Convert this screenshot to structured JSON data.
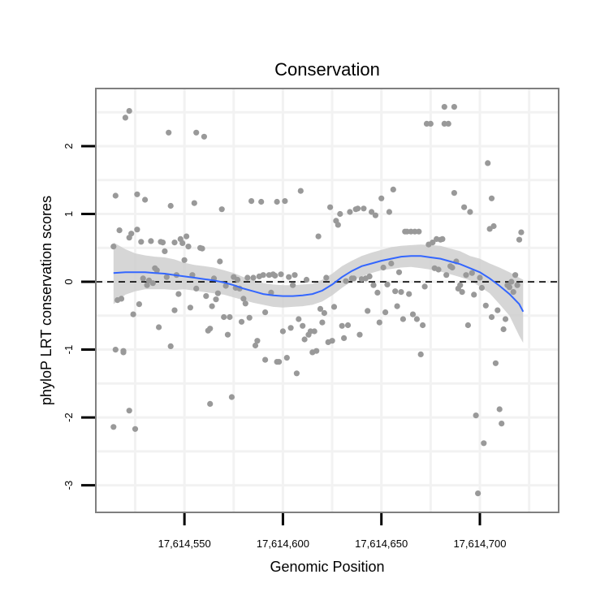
{
  "chart_data": {
    "type": "scatter",
    "title": "Conservation",
    "xlabel": "Genomic Position",
    "ylabel": "phyloP LRT conservation scores",
    "xlim": [
      17614505,
      17614740
    ],
    "ylim": [
      -3.4,
      2.85
    ],
    "x_ticks": [
      {
        "value": 17614550,
        "label": "17,614,550"
      },
      {
        "value": 17614600,
        "label": "17,614,600"
      },
      {
        "value": 17614650,
        "label": "17,614,650"
      },
      {
        "value": 17614700,
        "label": "17,614,700"
      }
    ],
    "y_ticks": [
      {
        "value": -3,
        "label": "-3"
      },
      {
        "value": -2,
        "label": "-2"
      },
      {
        "value": -1,
        "label": "-1"
      },
      {
        "value": 0,
        "label": "0"
      },
      {
        "value": 1,
        "label": "1"
      },
      {
        "value": 2,
        "label": "2"
      }
    ],
    "reference_line": {
      "y": 0,
      "style": "dashed"
    },
    "grid": true,
    "colors": {
      "points": "#999999",
      "smooth": "#3366FF",
      "ribbon": "#CCCCCC",
      "grid": "#F2F2F2",
      "panel_border": "#7F7F7F"
    },
    "points": [
      [
        17614514,
        -2.14
      ],
      [
        17614514,
        0.52
      ],
      [
        17614515,
        -1.0
      ],
      [
        17614515,
        1.27
      ],
      [
        17614516,
        -0.27
      ],
      [
        17614517,
        0.76
      ],
      [
        17614518,
        -0.25
      ],
      [
        17614519,
        -1.02
      ],
      [
        17614519,
        -1.04
      ],
      [
        17614520,
        2.42
      ],
      [
        17614522,
        -1.9
      ],
      [
        17614522,
        0.65
      ],
      [
        17614522,
        2.52
      ],
      [
        17614523,
        0.71
      ],
      [
        17614524,
        -0.48
      ],
      [
        17614525,
        -2.17
      ],
      [
        17614526,
        0.77
      ],
      [
        17614526,
        1.29
      ],
      [
        17614527,
        -0.33
      ],
      [
        17614528,
        0.59
      ],
      [
        17614529,
        0.05
      ],
      [
        17614530,
        1.21
      ],
      [
        17614531,
        -0.05
      ],
      [
        17614532,
        0.02
      ],
      [
        17614533,
        0.6
      ],
      [
        17614534,
        -0.02
      ],
      [
        17614535,
        0.2
      ],
      [
        17614536,
        0.17
      ],
      [
        17614537,
        -0.67
      ],
      [
        17614538,
        0.59
      ],
      [
        17614539,
        0.58
      ],
      [
        17614540,
        0.45
      ],
      [
        17614541,
        0.07
      ],
      [
        17614542,
        2.2
      ],
      [
        17614543,
        -0.95
      ],
      [
        17614543,
        1.12
      ],
      [
        17614545,
        -0.42
      ],
      [
        17614545,
        0.58
      ],
      [
        17614546,
        0.1
      ],
      [
        17614547,
        -0.18
      ],
      [
        17614548,
        0.63
      ],
      [
        17614549,
        0.57
      ],
      [
        17614550,
        0.32
      ],
      [
        17614551,
        0.67
      ],
      [
        17614552,
        0.52
      ],
      [
        17614553,
        -0.38
      ],
      [
        17614554,
        0.1
      ],
      [
        17614555,
        1.16
      ],
      [
        17614556,
        2.2
      ],
      [
        17614556,
        -0.1
      ],
      [
        17614558,
        0.5
      ],
      [
        17614559,
        0.49
      ],
      [
        17614560,
        2.14
      ],
      [
        17614561,
        -0.21
      ],
      [
        17614562,
        -0.72
      ],
      [
        17614563,
        -1.8
      ],
      [
        17614563,
        -0.69
      ],
      [
        17614564,
        -0.36
      ],
      [
        17614565,
        0.05
      ],
      [
        17614566,
        -0.26
      ],
      [
        17614567,
        -0.17
      ],
      [
        17614568,
        0.3
      ],
      [
        17614569,
        1.07
      ],
      [
        17614570,
        -0.52
      ],
      [
        17614571,
        -0.06
      ],
      [
        17614572,
        -0.78
      ],
      [
        17614573,
        -0.52
      ],
      [
        17614574,
        -1.7
      ],
      [
        17614575,
        0.07
      ],
      [
        17614576,
        -0.09
      ],
      [
        17614577,
        0.03
      ],
      [
        17614578,
        -0.1
      ],
      [
        17614579,
        -0.59
      ],
      [
        17614580,
        -0.25
      ],
      [
        17614581,
        -0.32
      ],
      [
        17614582,
        0.06
      ],
      [
        17614583,
        -0.53
      ],
      [
        17614584,
        1.19
      ],
      [
        17614585,
        0.06
      ],
      [
        17614586,
        -0.94
      ],
      [
        17614587,
        -0.87
      ],
      [
        17614588,
        0.08
      ],
      [
        17614589,
        1.18
      ],
      [
        17614590,
        0.1
      ],
      [
        17614591,
        -0.45
      ],
      [
        17614591,
        -1.15
      ],
      [
        17614593,
        0.1
      ],
      [
        17614594,
        -0.16
      ],
      [
        17614595,
        0.11
      ],
      [
        17614596,
        0.09
      ],
      [
        17614597,
        -1.18
      ],
      [
        17614597,
        1.18
      ],
      [
        17614598,
        -1.18
      ],
      [
        17614599,
        0.11
      ],
      [
        17614600,
        -0.73
      ],
      [
        17614601,
        1.19
      ],
      [
        17614602,
        -1.12
      ],
      [
        17614603,
        0.07
      ],
      [
        17614604,
        -0.68
      ],
      [
        17614605,
        -0.05
      ],
      [
        17614606,
        0.1
      ],
      [
        17614607,
        -1.35
      ],
      [
        17614608,
        -0.55
      ],
      [
        17614609,
        1.34
      ],
      [
        17614610,
        -0.65
      ],
      [
        17614611,
        -0.85
      ],
      [
        17614612,
        0.03
      ],
      [
        17614613,
        -0.78
      ],
      [
        17614614,
        -0.73
      ],
      [
        17614615,
        -1.04
      ],
      [
        17614616,
        -0.73
      ],
      [
        17614617,
        -1.02
      ],
      [
        17614618,
        0.67
      ],
      [
        17614619,
        -0.4
      ],
      [
        17614620,
        -0.6
      ],
      [
        17614621,
        -0.46
      ],
      [
        17614622,
        0.06
      ],
      [
        17614623,
        -0.89
      ],
      [
        17614624,
        1.1
      ],
      [
        17614625,
        -0.87
      ],
      [
        17614626,
        -0.37
      ],
      [
        17614627,
        0.9
      ],
      [
        17614628,
        0.84
      ],
      [
        17614629,
        1.0
      ],
      [
        17614630,
        -0.65
      ],
      [
        17614631,
        -0.83
      ],
      [
        17614632,
        0.01
      ],
      [
        17614633,
        -0.64
      ],
      [
        17614634,
        1.03
      ],
      [
        17614635,
        0.05
      ],
      [
        17614636,
        0.05
      ],
      [
        17614637,
        1.07
      ],
      [
        17614638,
        1.08
      ],
      [
        17614639,
        -0.78
      ],
      [
        17614640,
        0.04
      ],
      [
        17614641,
        1.08
      ],
      [
        17614642,
        0.05
      ],
      [
        17614643,
        -0.43
      ],
      [
        17614644,
        0.08
      ],
      [
        17614645,
        1.03
      ],
      [
        17614646,
        -0.05
      ],
      [
        17614647,
        0.98
      ],
      [
        17614648,
        -0.16
      ],
      [
        17614649,
        -0.6
      ],
      [
        17614650,
        1.23
      ],
      [
        17614651,
        0.21
      ],
      [
        17614652,
        -0.45
      ],
      [
        17614653,
        -0.04
      ],
      [
        17614654,
        1.03
      ],
      [
        17614655,
        0.27
      ],
      [
        17614656,
        1.36
      ],
      [
        17614657,
        -0.14
      ],
      [
        17614658,
        -0.36
      ],
      [
        17614659,
        0.14
      ],
      [
        17614660,
        -0.15
      ],
      [
        17614661,
        -0.55
      ],
      [
        17614662,
        0.74
      ],
      [
        17614663,
        0.74
      ],
      [
        17614664,
        -0.18
      ],
      [
        17614665,
        0.74
      ],
      [
        17614666,
        -0.48
      ],
      [
        17614667,
        0.74
      ],
      [
        17614668,
        -0.55
      ],
      [
        17614669,
        0.74
      ],
      [
        17614670,
        -1.07
      ],
      [
        17614671,
        -0.64
      ],
      [
        17614672,
        -0.07
      ],
      [
        17614673,
        2.33
      ],
      [
        17614674,
        0.55
      ],
      [
        17614675,
        2.33
      ],
      [
        17614676,
        0.58
      ],
      [
        17614677,
        0.2
      ],
      [
        17614678,
        0.63
      ],
      [
        17614679,
        0.18
      ],
      [
        17614680,
        0.62
      ],
      [
        17614681,
        0.63
      ],
      [
        17614682,
        2.58
      ],
      [
        17614682,
        2.33
      ],
      [
        17614683,
        0.1
      ],
      [
        17614684,
        2.33
      ],
      [
        17614685,
        0.23
      ],
      [
        17614686,
        0.21
      ],
      [
        17614687,
        2.58
      ],
      [
        17614687,
        1.31
      ],
      [
        17614688,
        0.3
      ],
      [
        17614689,
        -0.1
      ],
      [
        17614690,
        -0.05
      ],
      [
        17614691,
        -0.15
      ],
      [
        17614692,
        1.1
      ],
      [
        17614693,
        0.1
      ],
      [
        17614694,
        -0.64
      ],
      [
        17614695,
        1.03
      ],
      [
        17614696,
        0.13
      ],
      [
        17614697,
        -0.19
      ],
      [
        17614698,
        -1.97
      ],
      [
        17614699,
        -3.12
      ],
      [
        17614700,
        0.06
      ],
      [
        17614701,
        -0.09
      ],
      [
        17614702,
        -2.38
      ],
      [
        17614703,
        -0.35
      ],
      [
        17614704,
        1.75
      ],
      [
        17614705,
        0.78
      ],
      [
        17614706,
        -0.52
      ],
      [
        17614706,
        1.23
      ],
      [
        17614707,
        0.82
      ],
      [
        17614708,
        -1.2
      ],
      [
        17614709,
        -0.42
      ],
      [
        17614710,
        -1.88
      ],
      [
        17614711,
        -2.09
      ],
      [
        17614712,
        -0.7
      ],
      [
        17614713,
        -0.55
      ],
      [
        17614714,
        -0.05
      ],
      [
        17614715,
        -0.08
      ],
      [
        17614716,
        0.0
      ],
      [
        17614717,
        -0.15
      ],
      [
        17614718,
        0.1
      ],
      [
        17614719,
        -0.05
      ],
      [
        17614720,
        0.62
      ],
      [
        17614721,
        0.73
      ]
    ],
    "smooth": {
      "x": [
        17614514,
        17614520,
        17614525,
        17614530,
        17614535,
        17614540,
        17614545,
        17614550,
        17614555,
        17614560,
        17614565,
        17614570,
        17614575,
        17614580,
        17614585,
        17614590,
        17614595,
        17614600,
        17614605,
        17614610,
        17614615,
        17614620,
        17614625,
        17614630,
        17614635,
        17614640,
        17614645,
        17614650,
        17614655,
        17614660,
        17614665,
        17614670,
        17614675,
        17614680,
        17614685,
        17614690,
        17614695,
        17614700,
        17614705,
        17614710,
        17614715,
        17614720,
        17614722
      ],
      "y": [
        0.13,
        0.14,
        0.14,
        0.14,
        0.13,
        0.12,
        0.1,
        0.08,
        0.06,
        0.04,
        0.02,
        -0.01,
        -0.05,
        -0.1,
        -0.14,
        -0.18,
        -0.2,
        -0.21,
        -0.21,
        -0.2,
        -0.18,
        -0.13,
        -0.04,
        0.07,
        0.16,
        0.23,
        0.27,
        0.31,
        0.34,
        0.37,
        0.38,
        0.38,
        0.36,
        0.34,
        0.3,
        0.26,
        0.2,
        0.14,
        0.05,
        -0.06,
        -0.18,
        -0.33,
        -0.44
      ],
      "lower": [
        -0.33,
        -0.19,
        -0.14,
        -0.11,
        -0.11,
        -0.11,
        -0.12,
        -0.11,
        -0.13,
        -0.15,
        -0.17,
        -0.19,
        -0.23,
        -0.27,
        -0.31,
        -0.34,
        -0.37,
        -0.38,
        -0.37,
        -0.36,
        -0.34,
        -0.29,
        -0.2,
        -0.09,
        0.01,
        0.08,
        0.13,
        0.17,
        0.19,
        0.21,
        0.22,
        0.2,
        0.18,
        0.15,
        0.11,
        0.07,
        0.02,
        -0.07,
        -0.17,
        -0.33,
        -0.5,
        -0.8,
        -0.9
      ],
      "upper": [
        0.58,
        0.48,
        0.42,
        0.39,
        0.37,
        0.36,
        0.33,
        0.28,
        0.25,
        0.23,
        0.21,
        0.17,
        0.13,
        0.07,
        0.03,
        -0.02,
        -0.04,
        -0.05,
        -0.05,
        -0.04,
        -0.03,
        0.03,
        0.12,
        0.23,
        0.31,
        0.38,
        0.43,
        0.47,
        0.51,
        0.53,
        0.54,
        0.55,
        0.54,
        0.53,
        0.49,
        0.45,
        0.38,
        0.34,
        0.27,
        0.21,
        0.14,
        0.06,
        0.03
      ]
    }
  }
}
